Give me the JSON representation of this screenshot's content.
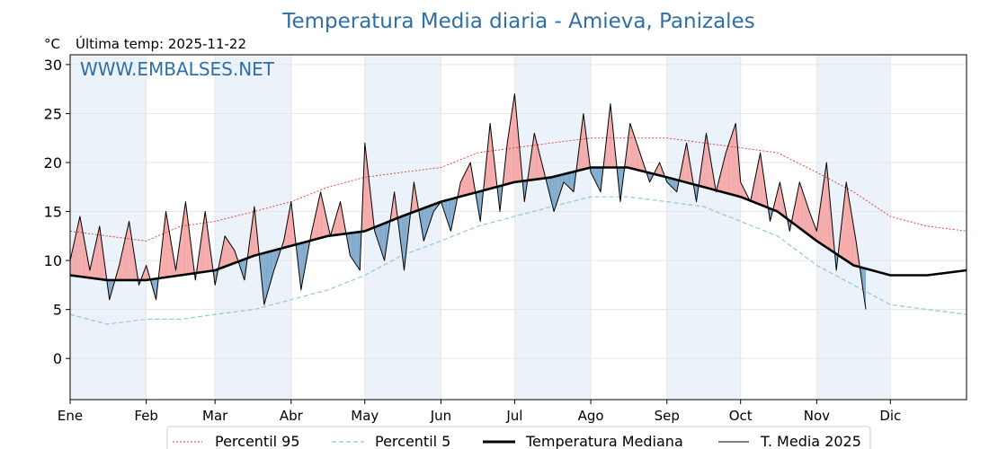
{
  "chart_data": {
    "type": "line",
    "title": "Temperatura Media diaria - Amieva, Panizales",
    "unit_label": "°C",
    "last_temp_label": "Última temp: 2025-11-22",
    "watermark": "WWW.EMBALSES.NET",
    "ylim": [
      -4.2,
      31
    ],
    "yticks": [
      0,
      5,
      10,
      15,
      20,
      25,
      30
    ],
    "xlim": [
      0,
      365
    ],
    "months": [
      "Ene",
      "Feb",
      "Mar",
      "Abr",
      "May",
      "Jun",
      "Jul",
      "Ago",
      "Sep",
      "Oct",
      "Nov",
      "Dic"
    ],
    "month_starts": [
      0,
      31,
      59,
      90,
      120,
      151,
      181,
      212,
      243,
      273,
      304,
      334
    ],
    "grid": true,
    "legend_position": "bottom",
    "colors": {
      "title": "#2f6fa5",
      "p95": "#e8322d",
      "p5": "#8fc7dc",
      "median": "#000000",
      "year": "#000000",
      "above_fill": "#f4a8a8",
      "below_fill": "#7fa9cc",
      "band": "#dde8f5"
    },
    "series": [
      {
        "name": "Percentil 95",
        "x": [
          0,
          15,
          31,
          45,
          59,
          75,
          90,
          105,
          120,
          135,
          151,
          166,
          181,
          196,
          212,
          227,
          243,
          258,
          273,
          288,
          304,
          319,
          334,
          349,
          365
        ],
        "values": [
          13,
          12.5,
          12,
          13.5,
          14,
          15,
          16,
          17.5,
          18.5,
          19,
          19.5,
          21,
          21.5,
          22,
          22.5,
          22.5,
          22.5,
          22,
          21.5,
          21,
          19,
          17,
          14.5,
          13.5,
          13
        ]
      },
      {
        "name": "Percentil 5",
        "x": [
          0,
          15,
          31,
          45,
          59,
          75,
          90,
          105,
          120,
          135,
          151,
          166,
          181,
          196,
          212,
          227,
          243,
          258,
          273,
          288,
          304,
          319,
          334,
          349,
          365
        ],
        "values": [
          4.5,
          3.5,
          4,
          4,
          4.5,
          5,
          6,
          7,
          8.5,
          10.5,
          12,
          13.5,
          14.5,
          15.5,
          16.5,
          16.5,
          16,
          15.5,
          14,
          12.5,
          9.5,
          7.5,
          5.5,
          5,
          4.5
        ]
      },
      {
        "name": "Temperatura Mediana",
        "x": [
          0,
          15,
          31,
          45,
          59,
          75,
          90,
          105,
          120,
          135,
          151,
          166,
          181,
          196,
          212,
          227,
          243,
          258,
          273,
          288,
          304,
          319,
          334,
          349,
          365
        ],
        "values": [
          8.5,
          8,
          8,
          8.5,
          9,
          10.5,
          11.5,
          12.5,
          13,
          14.5,
          16,
          17,
          18,
          18.5,
          19.5,
          19.5,
          18.5,
          17.5,
          16.5,
          15,
          12,
          9.5,
          8.5,
          8.5,
          9
        ]
      },
      {
        "name": "T. Media 2025",
        "x": [
          0,
          4,
          8,
          12,
          16,
          20,
          24,
          28,
          31,
          35,
          39,
          43,
          47,
          51,
          55,
          59,
          63,
          67,
          71,
          75,
          79,
          83,
          87,
          90,
          94,
          98,
          102,
          106,
          110,
          114,
          118,
          120,
          124,
          128,
          132,
          136,
          140,
          144,
          148,
          151,
          155,
          159,
          163,
          167,
          171,
          175,
          178,
          181,
          185,
          189,
          193,
          197,
          201,
          205,
          209,
          212,
          216,
          220,
          224,
          228,
          232,
          236,
          240,
          243,
          247,
          251,
          255,
          259,
          263,
          267,
          271,
          273,
          277,
          281,
          285,
          289,
          293,
          297,
          301,
          304,
          308,
          312,
          316,
          320,
          324
        ],
        "values": [
          10,
          14.5,
          9,
          13.5,
          6,
          9.5,
          14,
          7.5,
          9.5,
          6,
          15,
          9,
          16,
          8,
          15,
          7.5,
          12.5,
          11,
          8,
          15.5,
          5.5,
          9,
          12,
          16,
          7,
          12.5,
          17,
          12.5,
          16,
          10.5,
          9,
          22,
          13,
          10,
          17,
          9,
          18,
          12,
          15,
          16,
          13,
          18,
          20,
          14,
          24,
          15,
          22,
          27,
          16,
          23,
          19,
          15,
          18,
          17,
          25,
          19,
          17,
          26,
          16,
          24,
          21,
          18,
          20,
          18,
          17,
          22,
          16,
          23,
          17,
          21,
          24,
          18,
          16,
          21,
          14,
          18,
          13,
          18,
          15,
          13,
          20,
          9,
          18,
          12,
          5
        ]
      }
    ]
  }
}
